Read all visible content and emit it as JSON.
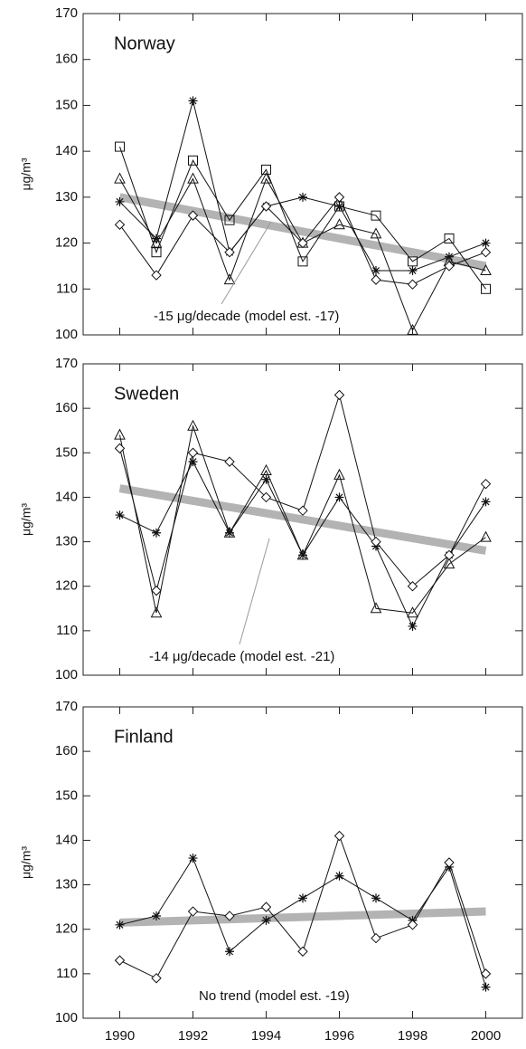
{
  "chart_data": [
    {
      "type": "line",
      "title": "Norway",
      "y_label": "μg/m³",
      "annotation": "-15 μg/decade (model est. -17)",
      "x": [
        1990,
        1991,
        1992,
        1993,
        1994,
        1995,
        1996,
        1997,
        1998,
        1999,
        2000
      ],
      "series": [
        {
          "marker": "square",
          "color": "#111111",
          "values": [
            141,
            118,
            138,
            125,
            136,
            116,
            128,
            126,
            116,
            121,
            110
          ]
        },
        {
          "marker": "triangle",
          "color": "#111111",
          "values": [
            134,
            120,
            134,
            112,
            134,
            120,
            124,
            122,
            101,
            116,
            114
          ]
        },
        {
          "marker": "asterisk",
          "color": "#111111",
          "values": [
            129,
            121,
            151,
            118,
            128,
            130,
            128,
            114,
            114,
            117,
            120
          ]
        },
        {
          "marker": "diamond",
          "color": "#111111",
          "values": [
            124,
            113,
            126,
            118,
            128,
            120,
            130,
            112,
            111,
            115,
            118
          ]
        }
      ],
      "trend": {
        "x": [
          1990,
          2000
        ],
        "values": [
          130,
          115
        ],
        "color": "#b3b3b3"
      },
      "xlim": [
        1989,
        2001
      ],
      "xticks": [
        1990,
        1992,
        1994,
        1996,
        1998,
        2000
      ],
      "xtick_labels": false,
      "ylim": [
        100,
        170
      ],
      "yticks": [
        100,
        110,
        120,
        130,
        140,
        150,
        160,
        170
      ]
    },
    {
      "type": "line",
      "title": "Sweden",
      "y_label": "μg/m³",
      "annotation": "-14 μg/decade (model est. -21)",
      "x": [
        1990,
        1991,
        1992,
        1993,
        1994,
        1995,
        1996,
        1997,
        1998,
        1999,
        2000
      ],
      "series": [
        {
          "marker": "triangle",
          "color": "#111111",
          "values": [
            154,
            114,
            156,
            132,
            146,
            127,
            145,
            115,
            114,
            125,
            131
          ]
        },
        {
          "marker": "asterisk",
          "color": "#111111",
          "values": [
            136,
            132,
            148,
            132,
            144,
            127,
            140,
            129,
            111,
            127,
            139
          ]
        },
        {
          "marker": "diamond",
          "color": "#111111",
          "values": [
            151,
            119,
            150,
            148,
            140,
            137,
            163,
            130,
            120,
            127,
            143
          ]
        }
      ],
      "trend": {
        "x": [
          1990,
          2000
        ],
        "values": [
          142,
          128
        ],
        "color": "#b3b3b3"
      },
      "xlim": [
        1989,
        2001
      ],
      "xticks": [
        1990,
        1992,
        1994,
        1996,
        1998,
        2000
      ],
      "xtick_labels": false,
      "ylim": [
        100,
        170
      ],
      "yticks": [
        100,
        110,
        120,
        130,
        140,
        150,
        160,
        170
      ]
    },
    {
      "type": "line",
      "title": "Finland",
      "y_label": "μg/m³",
      "annotation": "No trend (model est. -19)",
      "x": [
        1990,
        1991,
        1992,
        1993,
        1994,
        1995,
        1996,
        1997,
        1998,
        1999,
        2000
      ],
      "series": [
        {
          "marker": "asterisk",
          "color": "#111111",
          "values": [
            121,
            123,
            136,
            115,
            122,
            127,
            132,
            127,
            122,
            134,
            107
          ]
        },
        {
          "marker": "diamond",
          "color": "#111111",
          "values": [
            113,
            109,
            124,
            123,
            125,
            115,
            141,
            118,
            121,
            135,
            110
          ]
        }
      ],
      "trend": {
        "x": [
          1990,
          2000
        ],
        "values": [
          121.5,
          124
        ],
        "color": "#b3b3b3"
      },
      "xlim": [
        1989,
        2001
      ],
      "xticks": [
        1990,
        1992,
        1994,
        1996,
        1998,
        2000
      ],
      "xtick_labels": true,
      "ylim": [
        100,
        170
      ],
      "yticks": [
        100,
        110,
        120,
        130,
        140,
        150,
        160,
        170
      ]
    }
  ]
}
